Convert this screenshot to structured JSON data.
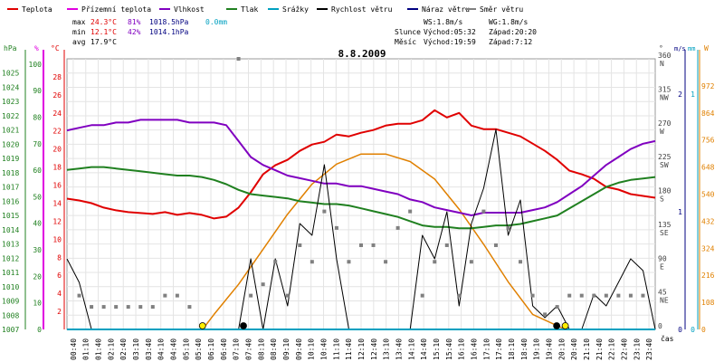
{
  "legend": [
    {
      "key": "temp",
      "label": "Teplota",
      "color": "#e00000"
    },
    {
      "key": "ground",
      "label": "Přízemní teplota",
      "color": "#e000e0"
    },
    {
      "key": "hum",
      "label": "Vlhkost",
      "color": "#8000c0"
    },
    {
      "key": "press",
      "label": "Tlak",
      "color": "#208020"
    },
    {
      "key": "rain",
      "label": "Srážky",
      "color": "#00a0c0"
    },
    {
      "key": "wind",
      "label": "Rychlost větru",
      "color": "#000000"
    },
    {
      "key": "gust",
      "label": "Náraz větru",
      "color": "#000080"
    },
    {
      "key": "dir",
      "label": "Směr větru",
      "color": "#808080"
    }
  ],
  "stats": {
    "max": {
      "label": "max",
      "temp": "24.3°C",
      "hum": "81%",
      "press": "1018.5hPa",
      "rain": "0.0mm"
    },
    "min": {
      "label": "min",
      "temp": "12.1°C",
      "hum": "42%",
      "press": "1014.1hPa"
    },
    "avg": {
      "label": "avg",
      "temp": "17.9°C"
    },
    "ws": "WS:1.8m/s",
    "wg": "WG:1.8m/s",
    "sun": {
      "label": "Slunce",
      "rise": "Východ:05:32",
      "set": "Západ:20:20"
    },
    "moon": {
      "label": "Měsíc",
      "rise": "Východ:19:59",
      "set": "Západ:7:12"
    }
  },
  "title": "8.8.2009",
  "axes": {
    "hpa": {
      "unit": "hPa",
      "color": "#208020",
      "ticks": [
        "1007",
        "1008",
        "1009",
        "1010",
        "1011",
        "1012",
        "1013",
        "1014",
        "1015",
        "1016",
        "1017",
        "1018",
        "1019",
        "1020",
        "1021",
        "1022",
        "1023",
        "1024",
        "1025"
      ]
    },
    "pct": {
      "unit": "%",
      "color": "#208020",
      "ticks": [
        "0",
        "10",
        "20",
        "30",
        "40",
        "50",
        "60",
        "70",
        "80",
        "90",
        "100"
      ]
    },
    "degc": {
      "unit": "°C",
      "color": "#e00000",
      "ticks": [
        "2",
        "4",
        "6",
        "8",
        "10",
        "12",
        "14",
        "16",
        "18",
        "20",
        "22",
        "24",
        "26",
        "28"
      ]
    },
    "dir": {
      "unit": "°",
      "color": "#404040",
      "ticks": [
        {
          "deg": "0",
          "card": ""
        },
        {
          "deg": "45",
          "card": "NE"
        },
        {
          "deg": "90",
          "card": "E"
        },
        {
          "deg": "135",
          "card": "SE"
        },
        {
          "deg": "180",
          "card": "S"
        },
        {
          "deg": "225",
          "card": "SW"
        },
        {
          "deg": "270",
          "card": "W"
        },
        {
          "deg": "315",
          "card": "NW"
        },
        {
          "deg": "360",
          "card": "N"
        }
      ]
    },
    "ms": {
      "unit": "m/s",
      "color": "#000080",
      "ticks": [
        "0",
        "1",
        "2"
      ]
    },
    "mm": {
      "unit": "mm",
      "color": "#00a0c0",
      "ticks": [
        "0",
        "1"
      ]
    },
    "wm2": {
      "unit": "W",
      "color": "#e08000",
      "ticks": [
        "0",
        "108",
        "216",
        "324",
        "432",
        "540",
        "648",
        "756",
        "864",
        "972"
      ]
    },
    "xlabel": "čas",
    "xticks": [
      "00:40",
      "01:10",
      "01:40",
      "02:10",
      "02:40",
      "03:10",
      "03:40",
      "04:10",
      "04:40",
      "05:10",
      "05:40",
      "06:10",
      "06:40",
      "07:10",
      "07:40",
      "08:10",
      "08:40",
      "09:10",
      "09:40",
      "10:10",
      "10:40",
      "11:10",
      "11:40",
      "12:10",
      "12:40",
      "13:10",
      "13:40",
      "14:10",
      "14:40",
      "15:10",
      "15:40",
      "16:10",
      "16:40",
      "17:10",
      "17:40",
      "18:10",
      "18:40",
      "19:10",
      "19:40",
      "20:10",
      "20:40",
      "21:10",
      "21:40",
      "22:10",
      "22:40",
      "23:10",
      "23:40"
    ]
  },
  "chart_data": {
    "type": "line",
    "title": "8.8.2009",
    "x_unit": "hours",
    "xlim": [
      0,
      24
    ],
    "series": [
      {
        "name": "Teplota",
        "unit": "°C",
        "color": "#e00000",
        "x": [
          0,
          0.5,
          1,
          1.5,
          2,
          2.5,
          3,
          3.5,
          4,
          4.5,
          5,
          5.5,
          6,
          6.5,
          7,
          7.5,
          8,
          8.5,
          9,
          9.5,
          10,
          10.5,
          11,
          11.5,
          12,
          12.5,
          13,
          13.5,
          14,
          14.5,
          15,
          15.5,
          16,
          16.5,
          17,
          17.5,
          18,
          18.5,
          19,
          19.5,
          20,
          20.5,
          21,
          21.5,
          22,
          22.5,
          23,
          23.5,
          24
        ],
        "y": [
          14.5,
          14.3,
          14.0,
          13.5,
          13.2,
          13.0,
          12.9,
          12.8,
          13.0,
          12.7,
          12.9,
          12.7,
          12.3,
          12.5,
          13.5,
          15.2,
          17.2,
          18.2,
          18.8,
          19.8,
          20.5,
          20.8,
          21.6,
          21.4,
          21.8,
          22.1,
          22.6,
          22.8,
          22.8,
          23.2,
          24.3,
          23.5,
          24.0,
          22.6,
          22.2,
          22.2,
          21.8,
          21.4,
          20.6,
          19.8,
          18.8,
          17.6,
          17.2,
          16.7,
          15.8,
          15.5,
          15.0,
          14.8,
          14.6
        ]
      },
      {
        "name": "Vlhkost",
        "unit": "%",
        "color": "#8000c0",
        "x": [
          0,
          0.5,
          1,
          1.5,
          2,
          2.5,
          3,
          3.5,
          4,
          4.5,
          5,
          5.5,
          6,
          6.5,
          7,
          7.5,
          8,
          8.5,
          9,
          9.5,
          10,
          10.5,
          11,
          11.5,
          12,
          12.5,
          13,
          13.5,
          14,
          14.5,
          15,
          15.5,
          16,
          16.5,
          17,
          17.5,
          18,
          18.5,
          19,
          19.5,
          20,
          20.5,
          21,
          21.5,
          22,
          22.5,
          23,
          23.5,
          24
        ],
        "y": [
          75,
          76,
          77,
          77,
          78,
          78,
          79,
          79,
          79,
          79,
          78,
          78,
          78,
          77,
          71,
          65,
          62,
          60,
          58,
          57,
          56,
          55,
          55,
          54,
          54,
          53,
          52,
          51,
          49,
          48,
          46,
          45,
          44,
          43,
          44,
          44,
          44,
          44,
          45,
          46,
          48,
          51,
          54,
          58,
          62,
          65,
          68,
          70,
          71
        ]
      },
      {
        "name": "Tlak",
        "unit": "hPa",
        "color": "#208020",
        "x": [
          0,
          0.5,
          1,
          1.5,
          2,
          2.5,
          3,
          3.5,
          4,
          4.5,
          5,
          5.5,
          6,
          6.5,
          7,
          7.5,
          8,
          8.5,
          9,
          9.5,
          10,
          10.5,
          11,
          11.5,
          12,
          12.5,
          13,
          13.5,
          14,
          14.5,
          15,
          15.5,
          16,
          16.5,
          17,
          17.5,
          18,
          18.5,
          19,
          19.5,
          20,
          20.5,
          21,
          21.5,
          22,
          22.5,
          23,
          23.5,
          24
        ],
        "y": [
          1018.2,
          1018.3,
          1018.4,
          1018.4,
          1018.3,
          1018.2,
          1018.1,
          1018.0,
          1017.9,
          1017.8,
          1017.8,
          1017.7,
          1017.5,
          1017.2,
          1016.8,
          1016.5,
          1016.4,
          1016.3,
          1016.2,
          1016.0,
          1015.9,
          1015.8,
          1015.8,
          1015.7,
          1015.5,
          1015.3,
          1015.1,
          1014.9,
          1014.6,
          1014.3,
          1014.2,
          1014.2,
          1014.1,
          1014.1,
          1014.2,
          1014.3,
          1014.3,
          1014.4,
          1014.6,
          1014.8,
          1015.0,
          1015.5,
          1016.0,
          1016.5,
          1017.0,
          1017.3,
          1017.5,
          1017.6,
          1017.7
        ]
      },
      {
        "name": "Rychlost větru",
        "unit": "m/s",
        "color": "#000000",
        "x": [
          0,
          0.5,
          1,
          1.5,
          2,
          2.5,
          3,
          3.5,
          4,
          4.5,
          5,
          5.5,
          6,
          6.5,
          7,
          7.5,
          8,
          8.5,
          9,
          9.5,
          10,
          10.5,
          11,
          11.5,
          12,
          12.5,
          13,
          13.5,
          14,
          14.5,
          15,
          15.5,
          16,
          16.5,
          17,
          17.5,
          18,
          18.5,
          19,
          19.5,
          20,
          20.5,
          21,
          21.5,
          22,
          22.5,
          23,
          23.5,
          24
        ],
        "y": [
          0.6,
          0.4,
          0,
          0,
          0,
          0,
          0,
          0,
          0,
          0,
          0,
          0,
          0,
          0,
          0,
          0.6,
          0,
          0.6,
          0.2,
          0.9,
          0.8,
          1.4,
          0.6,
          0,
          0,
          0,
          0,
          0,
          0,
          0.8,
          0.6,
          1.0,
          0.2,
          0.9,
          1.2,
          1.7,
          0.8,
          1.1,
          0.2,
          0.1,
          0.2,
          0,
          0,
          0.3,
          0.2,
          0.4,
          0.6,
          0.5,
          0
        ]
      },
      {
        "name": "Směr větru",
        "unit": "°",
        "color": "#808080",
        "x": [
          0.5,
          1,
          1.5,
          2,
          2.5,
          3,
          3.5,
          4,
          4.5,
          5,
          7,
          7.5,
          8,
          8.5,
          9,
          9.5,
          10,
          10.5,
          11,
          11.5,
          12,
          12.5,
          13,
          13.5,
          14,
          14.5,
          15,
          15.5,
          16,
          16.5,
          17,
          17.5,
          18,
          18.5,
          19,
          19.5,
          20,
          20.5,
          21,
          21.5,
          22,
          22.5,
          23,
          23.5
        ],
        "y": [
          45,
          30,
          30,
          30,
          30,
          30,
          30,
          45,
          45,
          30,
          360,
          45,
          60,
          90,
          45,
          112,
          90,
          157,
          135,
          90,
          112,
          112,
          90,
          135,
          157,
          45,
          90,
          112,
          45,
          90,
          157,
          112,
          135,
          90,
          45,
          20,
          30,
          45,
          45,
          45,
          45,
          45,
          45,
          45
        ]
      },
      {
        "name": "Srážky",
        "unit": "mm",
        "color": "#00a0c0",
        "x": [
          0,
          24
        ],
        "y": [
          0,
          0
        ]
      }
    ],
    "solar": {
      "name": "",
      "unit": "W",
      "color": "#e08000",
      "x": [
        5.53,
        6,
        7,
        8,
        9,
        10,
        11,
        12,
        13,
        14,
        15,
        16,
        17,
        18,
        19,
        20.33
      ],
      "y": [
        0,
        60,
        180,
        320,
        460,
        580,
        660,
        700,
        700,
        670,
        600,
        480,
        340,
        190,
        60,
        0
      ]
    },
    "markers": [
      {
        "label": "",
        "x": 5.53,
        "y": 0,
        "color": "#ffee00"
      },
      {
        "label": "",
        "x": 20.33,
        "y": 0,
        "color": "#ffee00"
      },
      {
        "label": "",
        "x": 7.2,
        "y": 0,
        "color": "#000000"
      },
      {
        "label": "",
        "x": 19.98,
        "y": 0,
        "color": "#000000"
      }
    ]
  }
}
